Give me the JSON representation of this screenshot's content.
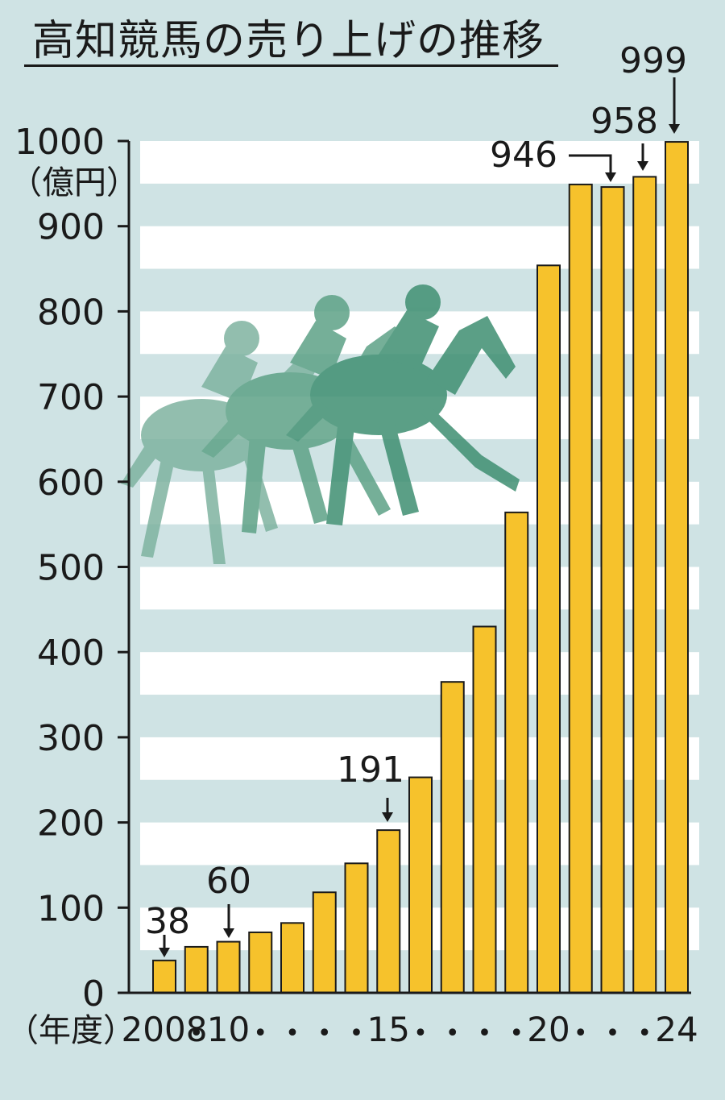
{
  "chart_data": {
    "type": "bar",
    "title": "高知競馬の売り上げの推移",
    "ylabel": "（億円）",
    "xlabel": "（年度）",
    "ylim": [
      0,
      1000
    ],
    "yticks": [
      0,
      100,
      200,
      300,
      400,
      500,
      600,
      700,
      800,
      900,
      1000
    ],
    "categories": [
      "2008",
      "09",
      "10",
      "11",
      "12",
      "13",
      "14",
      "15",
      "16",
      "17",
      "18",
      "19",
      "20",
      "21",
      "22",
      "23",
      "24"
    ],
    "x_tick_labels": [
      "2008",
      "•",
      "10",
      "•",
      "•",
      "•",
      "•",
      "15",
      "•",
      "•",
      "•",
      "•",
      "20",
      "•",
      "•",
      "•",
      "24"
    ],
    "values": [
      38,
      54,
      60,
      71,
      82,
      118,
      152,
      191,
      253,
      365,
      430,
      564,
      854,
      949,
      946,
      958,
      999
    ],
    "annotations": [
      {
        "index": 0,
        "label": "38"
      },
      {
        "index": 2,
        "label": "60"
      },
      {
        "index": 7,
        "label": "191"
      },
      {
        "index": 14,
        "label": "946"
      },
      {
        "index": 15,
        "label": "958"
      },
      {
        "index": 16,
        "label": "999"
      }
    ],
    "grid": "horizontal stripes",
    "colors": {
      "bar": "#f6c22c",
      "bar_edge": "#1a1a1a",
      "background": "#cfe3e4",
      "stripe": "#ffffff",
      "silhouette": "#3f8f72"
    }
  }
}
